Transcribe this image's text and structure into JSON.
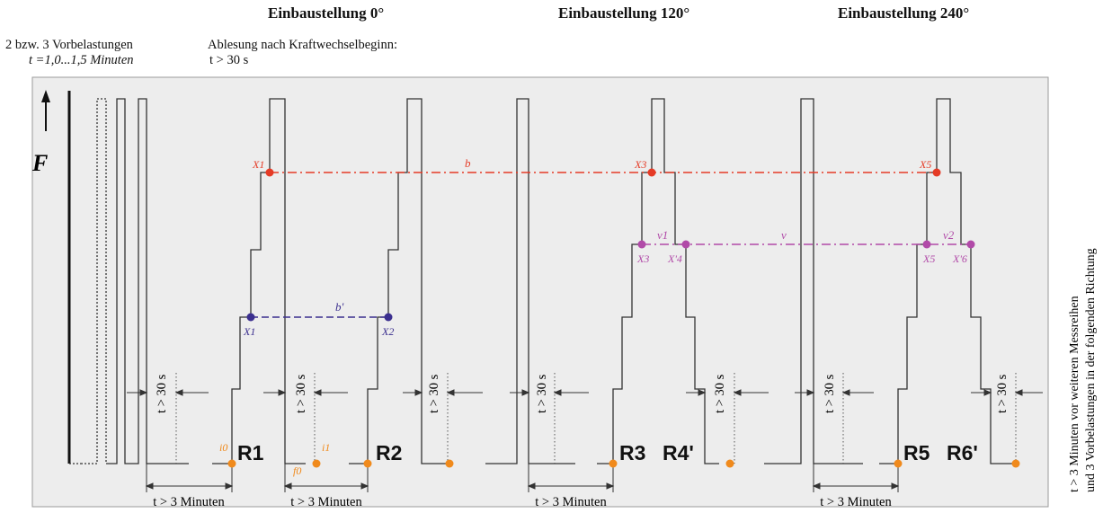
{
  "headers": {
    "pos0": "Einbaustellung 0°",
    "pos120": "Einbaustellung 120°",
    "pos240": "Einbaustellung 240°"
  },
  "preload": {
    "line1": "2 bzw. 3 Vorbelastungen",
    "line2": "t =1,0...1,5 Minuten"
  },
  "reading": {
    "line1": "Ablesung nach Kraftwechselbeginn:",
    "line2": "t > 30 s"
  },
  "force_label": "F",
  "wait_short": "t > 30 s",
  "wait_long": "t > 3 Minuten",
  "side_note": {
    "line1": "t > 3 Minuten vor weiteren Messreihen",
    "line2": "und 3 Vorbelastungen in der folgenden Richtung"
  },
  "series_labels": [
    "R1",
    "R2",
    "R3",
    "R4'",
    "R5",
    "R6'"
  ],
  "points": {
    "X1_top": "X1",
    "X3_top": "X3",
    "X5_top": "X5",
    "X1": "X1",
    "X2": "X2",
    "X3": "X3",
    "X4p": "X'4",
    "X5": "X5",
    "X6p": "X'6",
    "i0": "i0",
    "i1": "i1",
    "f0": "f0"
  },
  "line_labels": {
    "b": "b",
    "b_prime": "b'",
    "v": "v",
    "v1": "v1",
    "v2": "v2"
  },
  "colors": {
    "panel_bg": "#ededed",
    "curve": "#333333",
    "red": "#e53b26",
    "blue": "#3b2f8f",
    "magenta": "#b14aa8",
    "orange": "#f08a1c"
  }
}
